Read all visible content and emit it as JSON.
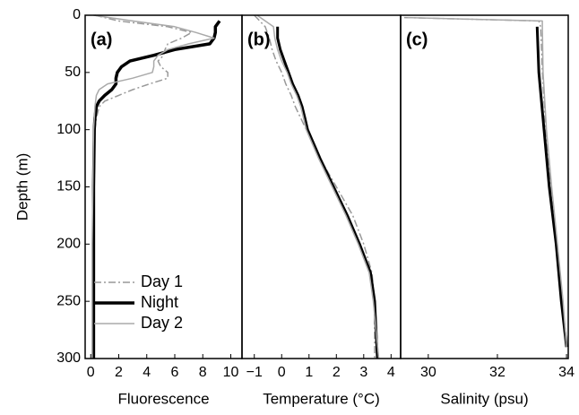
{
  "chart_data": [
    {
      "type": "line",
      "panel_label": "(a)",
      "xlabel": "Fluorescence",
      "ylabel": "Depth (m)",
      "xlim": [
        -0.4,
        10.8
      ],
      "xticks": [
        0,
        2,
        4,
        6,
        8,
        10
      ],
      "ylim": [
        300,
        0
      ],
      "yticks": [
        0,
        50,
        100,
        150,
        200,
        250,
        300
      ],
      "legend": "lower left",
      "depths": [
        0,
        5,
        10,
        15,
        20,
        25,
        30,
        35,
        40,
        45,
        50,
        55,
        60,
        65,
        70,
        75,
        80,
        90,
        100,
        150,
        200,
        250,
        300
      ],
      "series": [
        {
          "name": "Day 1",
          "color": "#999999",
          "linestyle": "dashdot",
          "width": 1.5,
          "values": [
            0.3,
            2,
            5.5,
            7.2,
            6.5,
            5.5,
            5.3,
            5.2,
            4.8,
            5.0,
            5.5,
            5.5,
            4.2,
            3,
            2,
            1,
            0.6,
            0.4,
            0.3,
            0.25,
            0.25,
            0.25,
            0.25
          ]
        },
        {
          "name": "Night",
          "color": "#000000",
          "linestyle": "solid",
          "width": 3.5,
          "values": [
            null,
            9.2,
            8.9,
            8.9,
            8.8,
            8.5,
            6,
            4.5,
            2.8,
            2.2,
            1.9,
            1.8,
            1.8,
            1.5,
            1.0,
            0.6,
            0.4,
            0.3,
            0.25,
            0.2,
            0.2,
            0.2,
            0.2
          ]
        },
        {
          "name": "Day 2",
          "color": "#aaaaaa",
          "linestyle": "solid",
          "width": 1.5,
          "values": [
            0.2,
            3,
            6,
            7.5,
            8.8,
            7,
            5.5,
            4.8,
            4.5,
            4.5,
            4.4,
            3,
            1.2,
            0.6,
            0.4,
            0.35,
            0.3,
            0.25,
            0.2,
            0.15,
            0.1,
            0.1,
            0.1
          ]
        }
      ]
    },
    {
      "type": "line",
      "panel_label": "(b)",
      "xlabel": "Temperature (°C)",
      "xlim": [
        -1.45,
        4.35
      ],
      "xticks": [
        {
          "value": -1,
          "label": "−1"
        },
        0,
        1,
        2,
        3,
        4
      ],
      "ylim": [
        300,
        0
      ],
      "depths": [
        0,
        10,
        20,
        30,
        40,
        50,
        60,
        70,
        80,
        90,
        100,
        125,
        150,
        175,
        200,
        225,
        250,
        275,
        300
      ],
      "series": [
        {
          "color": "#999999",
          "linestyle": "dashdot",
          "width": 1.5,
          "values": [
            -1.0,
            -0.6,
            -0.45,
            -0.35,
            -0.2,
            0,
            0.15,
            0.35,
            0.5,
            0.7,
            0.9,
            1.4,
            2.0,
            2.6,
            3.0,
            3.3,
            3.4,
            3.4,
            3.4
          ]
        },
        {
          "color": "#000000",
          "linestyle": "solid",
          "width": 3,
          "values": [
            null,
            -0.15,
            -0.15,
            -0.05,
            0.1,
            0.25,
            0.4,
            0.6,
            0.75,
            0.85,
            0.95,
            1.4,
            1.9,
            2.4,
            2.85,
            3.25,
            3.4,
            3.45,
            3.5
          ]
        },
        {
          "color": "#aaaaaa",
          "linestyle": "solid",
          "width": 1.5,
          "values": [
            -0.9,
            -0.3,
            -0.25,
            -0.15,
            0.0,
            0.2,
            0.35,
            0.55,
            0.7,
            0.8,
            0.9,
            1.35,
            1.85,
            2.35,
            2.8,
            3.2,
            3.35,
            3.45,
            3.55
          ]
        }
      ]
    },
    {
      "type": "line",
      "panel_label": "(c)",
      "xlabel": "Salinity (psu)",
      "xlim": [
        29.2,
        34.05
      ],
      "xticks": [
        30,
        32,
        34
      ],
      "ylim": [
        300,
        0
      ],
      "depths": [
        0,
        2,
        5,
        10,
        50,
        100,
        150,
        200,
        250,
        290
      ],
      "series": [
        {
          "color": "#999999",
          "linestyle": "dashdot",
          "width": 1.5,
          "values": [
            null,
            29.3,
            33.2,
            33.25,
            33.3,
            33.4,
            33.55,
            33.72,
            33.88,
            34.0
          ]
        },
        {
          "color": "#000000",
          "linestyle": "solid",
          "width": 3,
          "values": [
            null,
            null,
            null,
            33.15,
            33.2,
            33.35,
            33.5,
            33.7,
            33.85,
            34.0
          ]
        },
        {
          "color": "#aaaaaa",
          "linestyle": "solid",
          "width": 1.5,
          "values": [
            null,
            29.4,
            33.3,
            33.3,
            33.32,
            33.42,
            33.57,
            33.74,
            33.9,
            34.0
          ]
        }
      ]
    }
  ]
}
